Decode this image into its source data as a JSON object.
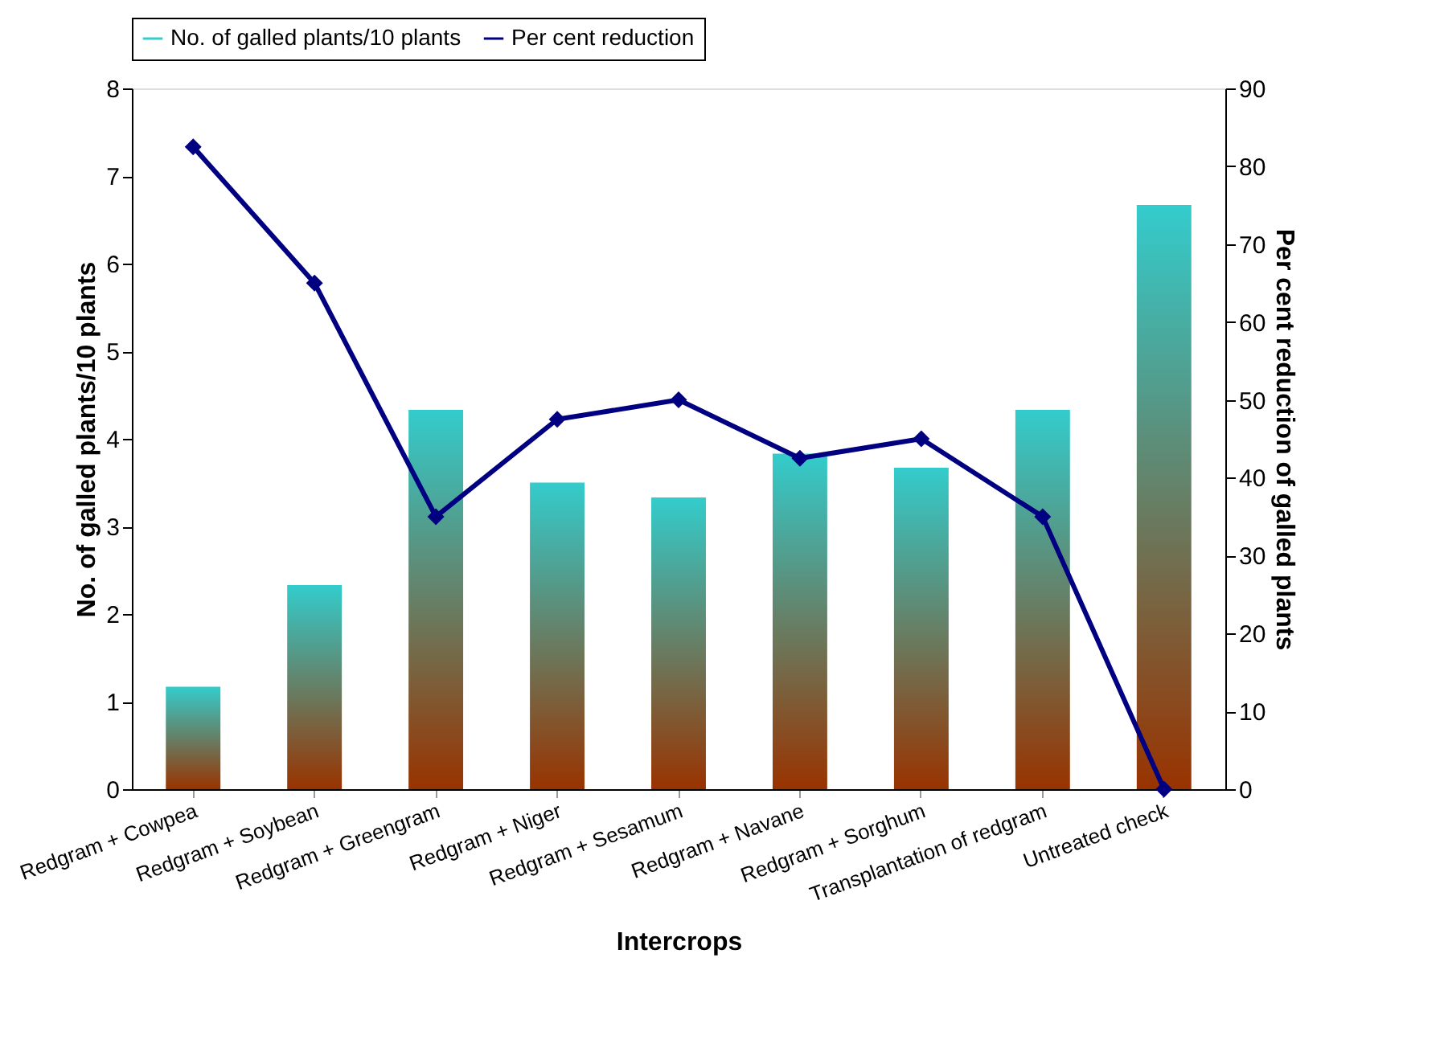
{
  "chart_data": {
    "type": "bar",
    "xlabel": "Intercrops",
    "ylabel": "No. of galled plants/10 plants",
    "y2label": "Per cent reduction of galled plants",
    "categories": [
      "Redgram + Cowpea",
      "Redgram + Soybean",
      "Redgram + Greengram",
      "Redgram + Niger",
      "Redgram + Sesamum",
      "Redgram + Navane",
      "Redgram + Sorghum",
      "Transplantation of redgram",
      "Untreated check"
    ],
    "series": [
      {
        "name": "No. of galled plants/10 plants",
        "color": "#33cccc",
        "values": [
          1.17,
          2.33,
          4.33,
          3.5,
          3.33,
          3.83,
          3.67,
          4.33,
          6.67
        ]
      },
      {
        "name": "Per cent reduction",
        "type": "line",
        "axis": "y2",
        "color": "#000080",
        "marker": "diamond",
        "values": [
          82.5,
          65,
          35,
          47.5,
          50,
          42.5,
          45,
          35,
          0
        ]
      }
    ],
    "ylim": [
      0,
      8
    ],
    "yticks": [
      0,
      1,
      2,
      3,
      4,
      5,
      6,
      7,
      8
    ],
    "y2lim": [
      0,
      90
    ],
    "y2ticks": [
      0,
      10,
      20,
      30,
      40,
      50,
      60,
      70,
      80,
      90
    ],
    "grid": false,
    "legend": "top"
  }
}
